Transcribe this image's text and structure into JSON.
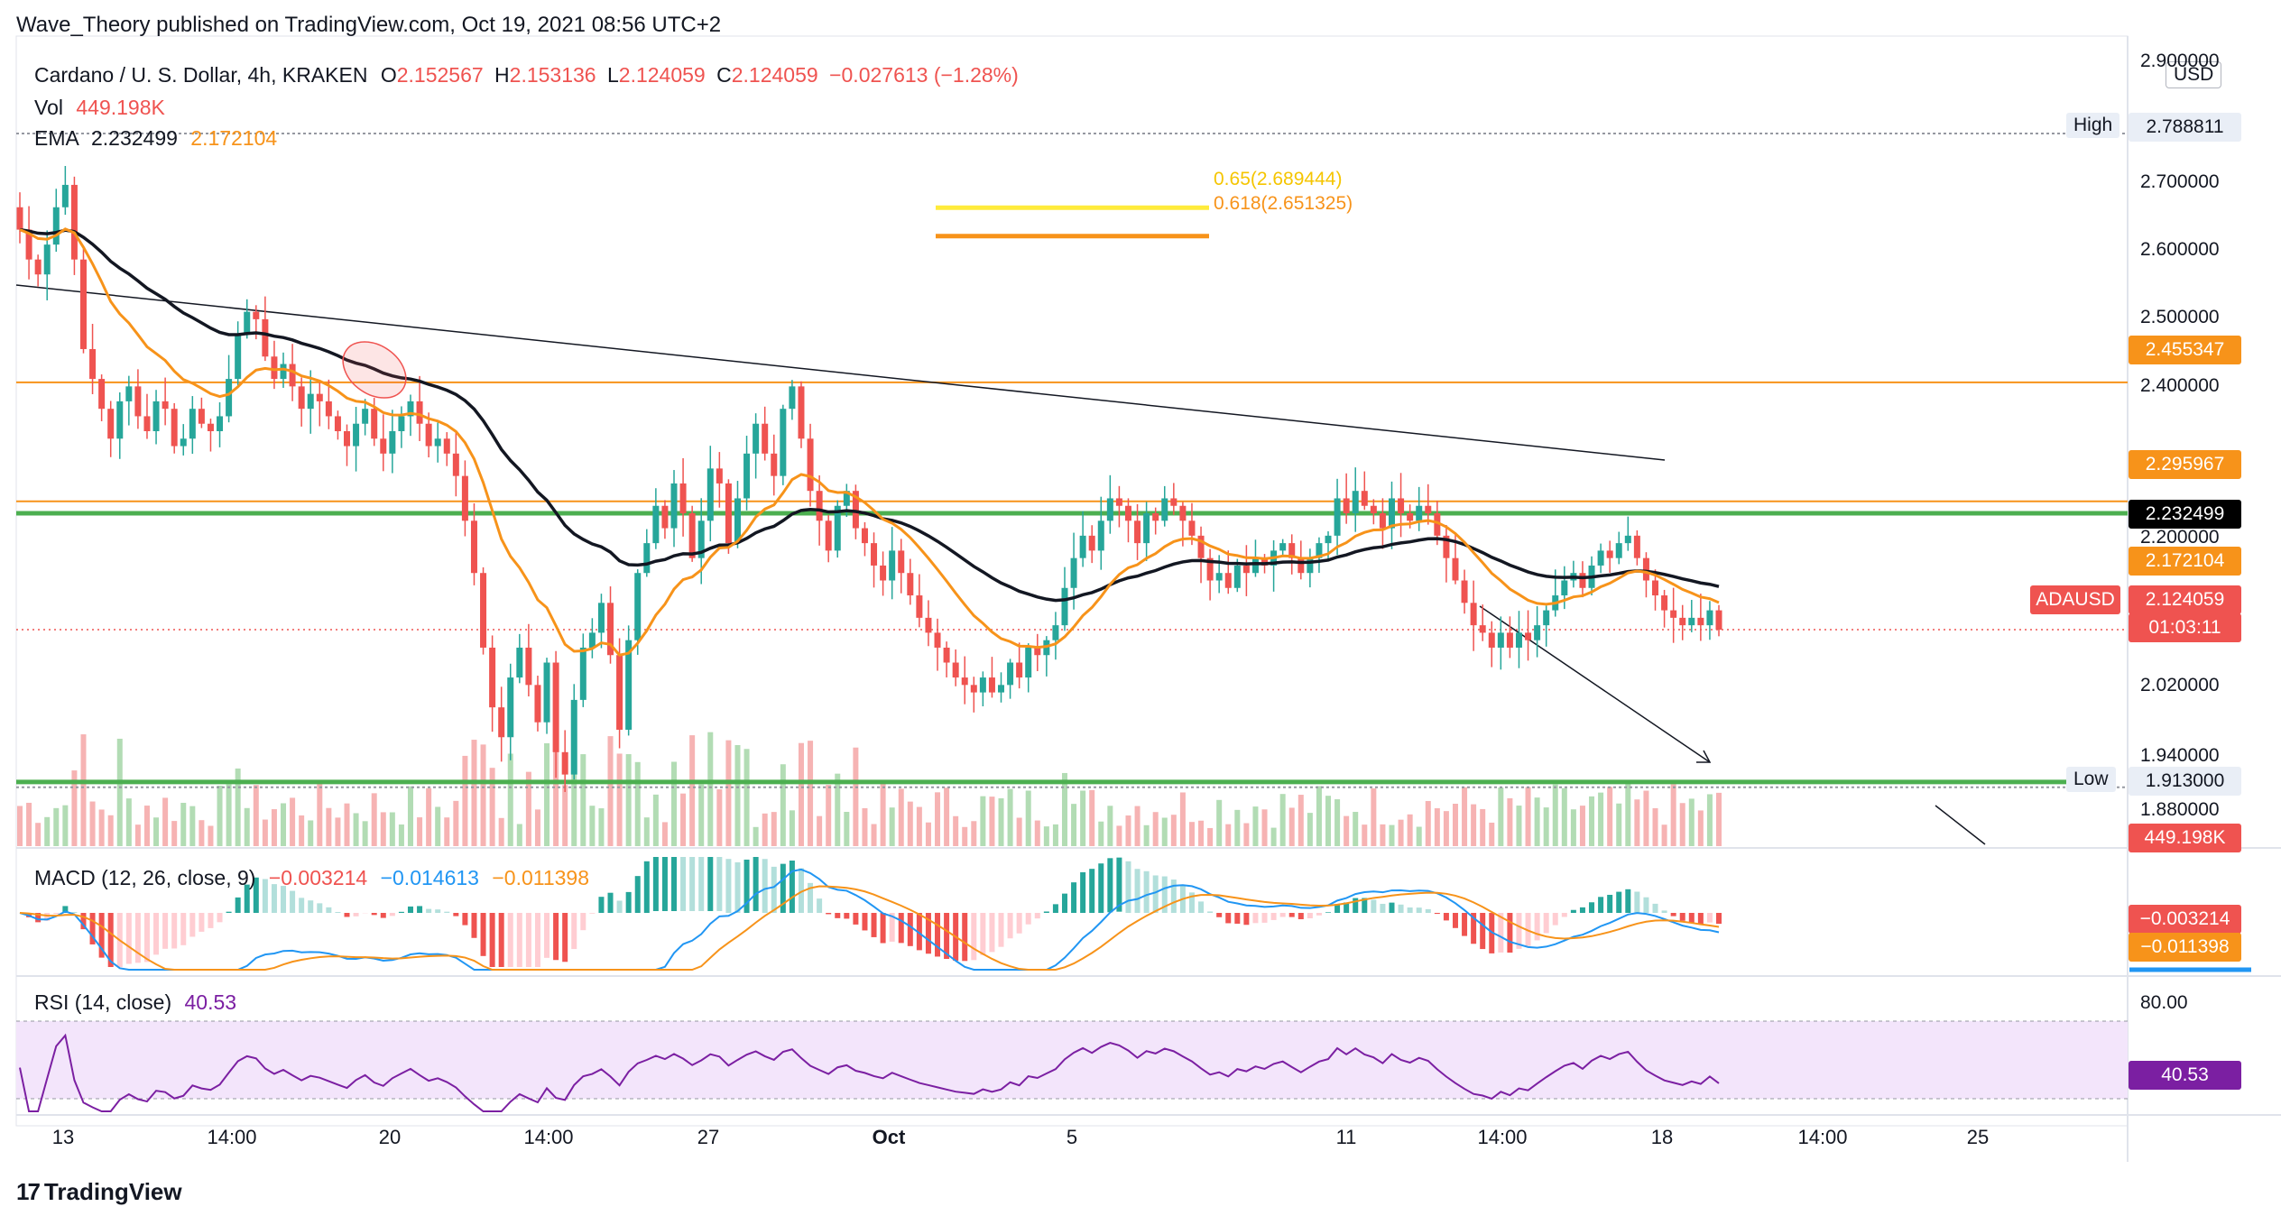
{
  "header": {
    "publisher": "Wave_Theory published on TradingView.com, Oct 19, 2021 08:56 UTC+2"
  },
  "symbol_line": {
    "name": "Cardano / U. S. Dollar, 4h, KRAKEN",
    "o_label": "O",
    "o": "2.152567",
    "h_label": "H",
    "h": "2.153136",
    "l_label": "L",
    "l": "2.124059",
    "c_label": "C",
    "c": "2.124059",
    "change": "−0.027613 (−1.28%)"
  },
  "vol_line": {
    "label": "Vol",
    "value": "449.198K"
  },
  "ema_line": {
    "label": "EMA",
    "v1": "2.232499",
    "v2": "2.172104"
  },
  "macd_line": {
    "label": "MACD (12, 26, close, 9)",
    "v1": "−0.003214",
    "v2": "−0.014613",
    "v3": "−0.011398"
  },
  "rsi_line": {
    "label": "RSI (14, close)",
    "value": "40.53"
  },
  "fib": {
    "a": "0.65(2.689444)",
    "b": "0.618(2.651325)"
  },
  "currency": "USD",
  "axis_labels": [
    "2.900000",
    "2.700000",
    "2.600000",
    "2.500000",
    "2.400000",
    "2.200000",
    "2.020000",
    "1.940000",
    "1.880000"
  ],
  "tags": {
    "high_label": "High",
    "high_value": "2.788811",
    "low_label": "Low",
    "low_value": "1.913000",
    "r1": "2.455347",
    "r2": "2.295967",
    "ema1": "2.232499",
    "ema2": "2.172104",
    "price_symbol": "ADAUSD",
    "price": "2.124059",
    "countdown": "01:03:11",
    "volume": "449.198K",
    "macd1": "−0.003214",
    "macd2": "−0.011398",
    "rsi_level": "80.00",
    "rsi": "40.53"
  },
  "x_labels": [
    "13",
    "14:00",
    "20",
    "14:00",
    "27",
    "Oct",
    "5",
    "11",
    "14:00",
    "18",
    "14:00",
    "25"
  ],
  "footer": {
    "brand": "TradingView"
  },
  "colors": {
    "up": "#26a69a",
    "down": "#ef5350",
    "ema_slow": "#131722",
    "ema_fast": "#f7931a",
    "resistance": "#f7931a",
    "support": "#4caf50",
    "fib_a": "#ffeb3b",
    "fib_b": "#f7931a",
    "rsi_line": "#7b1fa2",
    "rsi_band": "#f3e5fb",
    "macd_line": "#2196f3",
    "signal_line": "#f7931a"
  },
  "chart_data": {
    "type": "candlestick",
    "title": "Cardano / U. S. Dollar, 4h, KRAKEN",
    "ylim": [
      1.85,
      2.9
    ],
    "x_ticks": [
      "13",
      "14:00",
      "20",
      "14:00",
      "27",
      "Oct",
      "5",
      "11",
      "14:00",
      "18",
      "14:00",
      "25"
    ],
    "close": [
      2.66,
      2.62,
      2.6,
      2.64,
      2.69,
      2.72,
      2.62,
      2.5,
      2.46,
      2.42,
      2.38,
      2.43,
      2.45,
      2.41,
      2.39,
      2.43,
      2.42,
      2.37,
      2.38,
      2.42,
      2.4,
      2.39,
      2.41,
      2.46,
      2.52,
      2.55,
      2.54,
      2.49,
      2.46,
      2.48,
      2.45,
      2.42,
      2.44,
      2.43,
      2.41,
      2.39,
      2.37,
      2.4,
      2.42,
      2.38,
      2.36,
      2.39,
      2.41,
      2.43,
      2.4,
      2.37,
      2.38,
      2.36,
      2.33,
      2.27,
      2.2,
      2.1,
      2.02,
      1.98,
      2.06,
      2.1,
      2.05,
      2.0,
      2.08,
      1.96,
      1.93,
      2.03,
      2.1,
      2.12,
      2.16,
      2.09,
      1.99,
      2.11,
      2.2,
      2.24,
      2.29,
      2.26,
      2.32,
      2.28,
      2.22,
      2.27,
      2.34,
      2.32,
      2.24,
      2.3,
      2.36,
      2.4,
      2.36,
      2.33,
      2.42,
      2.45,
      2.38,
      2.31,
      2.27,
      2.23,
      2.29,
      2.31,
      2.26,
      2.24,
      2.21,
      2.19,
      2.23,
      2.2,
      2.17,
      2.14,
      2.12,
      2.1,
      2.08,
      2.06,
      2.05,
      2.04,
      2.06,
      2.04,
      2.05,
      2.08,
      2.06,
      2.1,
      2.09,
      2.11,
      2.13,
      2.18,
      2.22,
      2.25,
      2.23,
      2.27,
      2.3,
      2.29,
      2.27,
      2.24,
      2.28,
      2.27,
      2.3,
      2.29,
      2.27,
      2.25,
      2.22,
      2.19,
      2.2,
      2.18,
      2.21,
      2.2,
      2.22,
      2.21,
      2.23,
      2.24,
      2.22,
      2.2,
      2.22,
      2.24,
      2.25,
      2.3,
      2.28,
      2.31,
      2.29,
      2.28,
      2.26,
      2.3,
      2.28,
      2.27,
      2.29,
      2.28,
      2.25,
      2.22,
      2.19,
      2.16,
      2.13,
      2.12,
      2.1,
      2.12,
      2.1,
      2.12,
      2.11,
      2.13,
      2.15,
      2.17,
      2.19,
      2.2,
      2.18,
      2.21,
      2.23,
      2.22,
      2.24,
      2.25,
      2.22,
      2.19,
      2.17,
      2.15,
      2.14,
      2.13,
      2.14,
      2.13,
      2.15,
      2.124
    ],
    "volume_scale": "0–449.198K",
    "ema_slow_last": 2.232499,
    "ema_fast_last": 2.172104,
    "macd_last": -0.003214,
    "macd_signal_last": -0.014613,
    "macd_hist_last": -0.011398,
    "rsi_last": 40.53,
    "rsi_band": [
      30,
      80
    ]
  }
}
